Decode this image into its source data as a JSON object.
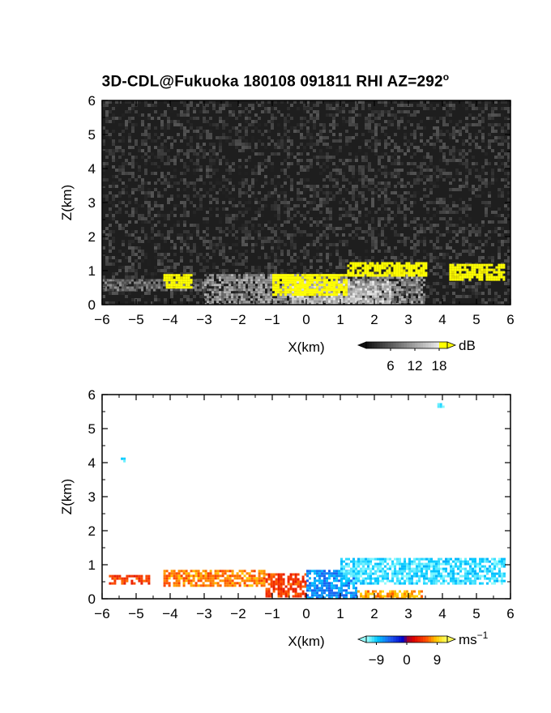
{
  "title": {
    "main": "3D-CDL@Fukuoka 180108 091811 RHI AZ=292",
    "degree": "o"
  },
  "chart_data": [
    {
      "type": "heatmap",
      "panel": "reflectivity",
      "xlabel": "X(km)",
      "ylabel": "Z(km)",
      "xlim": [
        -6,
        6
      ],
      "ylim": [
        0,
        6
      ],
      "x_ticks": [
        "-6",
        "-5",
        "-4",
        "-3",
        "-2",
        "-1",
        "0",
        "1",
        "2",
        "3",
        "4",
        "5",
        "6"
      ],
      "y_ticks": [
        "0",
        "1",
        "2",
        "3",
        "4",
        "5",
        "6"
      ],
      "colorbar": {
        "unit": "dB",
        "ticks": [
          "6",
          "12",
          "18"
        ],
        "range": [
          0,
          20
        ]
      },
      "features": [
        {
          "x0": -6.0,
          "x1": 6.0,
          "z0": 0.0,
          "z1": 6.0,
          "level": "noise"
        },
        {
          "x0": -6.0,
          "x1": -3.0,
          "z0": 0.45,
          "z1": 0.75,
          "level": "low"
        },
        {
          "x0": -3.0,
          "x1": 3.5,
          "z0": 0.0,
          "z1": 0.9,
          "level": "medium"
        },
        {
          "x0": -0.5,
          "x1": 2.5,
          "z0": 0.0,
          "z1": 0.7,
          "level": "high"
        },
        {
          "x0": -1.0,
          "x1": 1.2,
          "z0": 0.3,
          "z1": 0.9,
          "level": "max"
        },
        {
          "x0": 1.2,
          "x1": 3.5,
          "z0": 0.85,
          "z1": 1.25,
          "level": "max"
        },
        {
          "x0": 4.2,
          "x1": 5.8,
          "z0": 0.7,
          "z1": 1.2,
          "level": "max"
        },
        {
          "x0": -4.2,
          "x1": -3.4,
          "z0": 0.5,
          "z1": 0.9,
          "level": "max"
        }
      ]
    },
    {
      "type": "heatmap",
      "panel": "doppler_velocity",
      "xlabel": "X(km)",
      "ylabel": "Z(km)",
      "xlim": [
        -6,
        6
      ],
      "ylim": [
        0,
        6
      ],
      "x_ticks": [
        "-6",
        "-5",
        "-4",
        "-3",
        "-2",
        "-1",
        "0",
        "1",
        "2",
        "3",
        "4",
        "5",
        "6"
      ],
      "y_ticks": [
        "0",
        "1",
        "2",
        "3",
        "4",
        "5",
        "6"
      ],
      "colorbar": {
        "unit": "ms",
        "unit_exp": "-1",
        "ticks": [
          "-9",
          "0",
          "9"
        ],
        "range": [
          -12,
          12
        ]
      },
      "features": [
        {
          "x0": -5.8,
          "x1": -4.6,
          "z0": 0.45,
          "z1": 0.7,
          "velocity": 5
        },
        {
          "x0": -4.2,
          "x1": -1.2,
          "z0": 0.35,
          "z1": 0.85,
          "velocity": 7
        },
        {
          "x0": -1.2,
          "x1": 0.0,
          "z0": 0.1,
          "z1": 0.75,
          "velocity": 5
        },
        {
          "x0": 0.0,
          "x1": 1.5,
          "z0": 0.05,
          "z1": 0.85,
          "velocity": -7
        },
        {
          "x0": 1.0,
          "x1": 5.8,
          "z0": 0.45,
          "z1": 1.2,
          "velocity": -10
        },
        {
          "x0": 1.5,
          "x1": 3.4,
          "z0": 0.0,
          "z1": 0.25,
          "velocity": 8
        },
        {
          "x0": -5.45,
          "x1": -5.3,
          "z0": 4.05,
          "z1": 4.15,
          "velocity": -10
        },
        {
          "x0": 3.85,
          "x1": 4.0,
          "z0": 5.65,
          "z1": 5.75,
          "velocity": -10
        }
      ]
    }
  ]
}
